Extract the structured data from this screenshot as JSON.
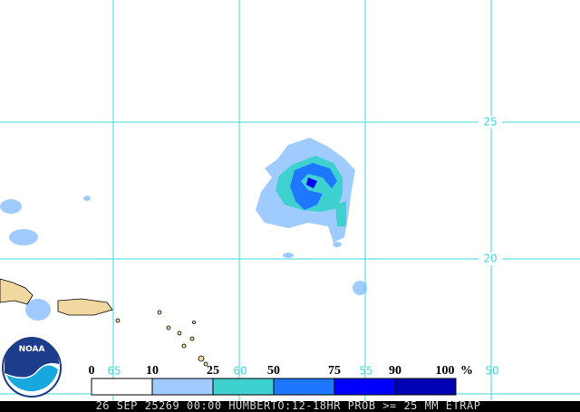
{
  "grid": {
    "latitudes": [
      25,
      20
    ],
    "longitudes": [
      65,
      60,
      55,
      50
    ]
  },
  "legend": {
    "ticks": [
      0,
      10,
      25,
      50,
      75,
      90,
      100
    ],
    "unit": "%",
    "colors": [
      "#ffffff",
      "#9fcbff",
      "#3fd0d0",
      "#1e78ff",
      "#0000ff",
      "#0000b4"
    ]
  },
  "logo": {
    "text": "NOAA"
  },
  "footer": {
    "text": "26 SEP 25269 00:00 HUMBERTO:12-18HR PROB >= 25 MM ETRAP"
  }
}
